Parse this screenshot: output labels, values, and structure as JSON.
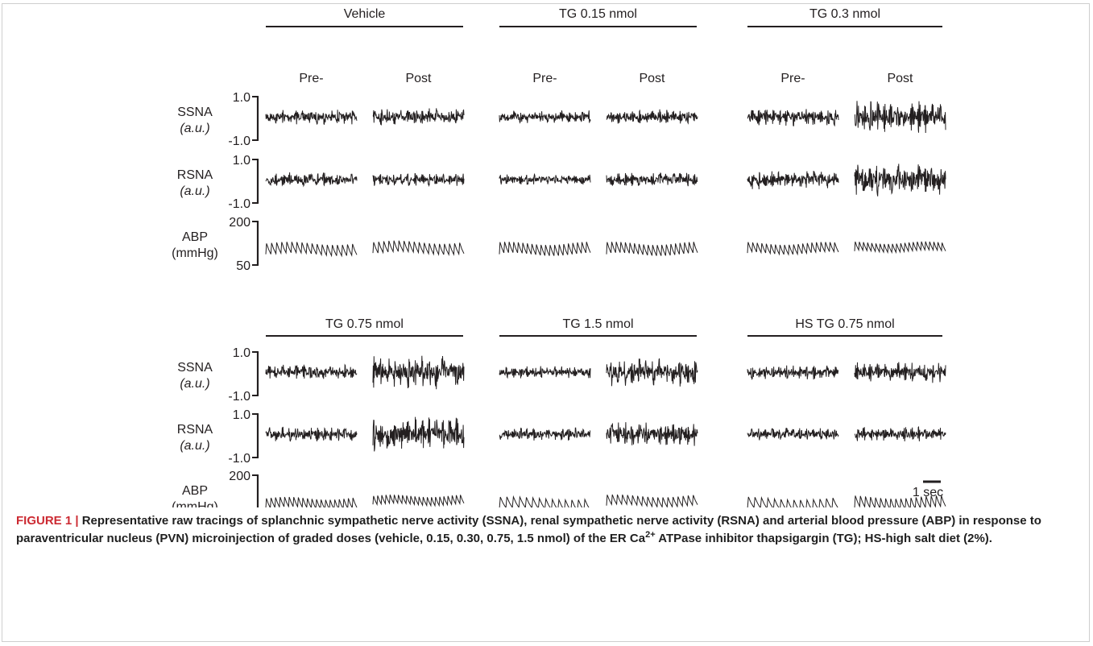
{
  "figure": {
    "scale_bar_label": "1 sec",
    "row_labels": [
      {
        "name": "SSNA",
        "unit": "(a.u.)",
        "top_tick": "1.0",
        "bottom_tick": "-1.0"
      },
      {
        "name": "RSNA",
        "unit": "(a.u.)",
        "top_tick": "1.0",
        "bottom_tick": "-1.0"
      },
      {
        "name": "ABP",
        "unit": "(mmHg)",
        "top_tick": "200",
        "bottom_tick": "50"
      }
    ],
    "panels": [
      {
        "groups": [
          {
            "title": "Vehicle",
            "pre": "Pre-",
            "post": "Post",
            "amp": {
              "ssna": [
                0.35,
                0.4
              ],
              "rsna": [
                0.35,
                0.3
              ],
              "abp_base": [
                0.45,
                0.5
              ],
              "abp_amp": [
                0.45,
                0.45
              ],
              "abp_beats": [
                18,
                18
              ]
            }
          },
          {
            "title": "TG 0.15 nmol",
            "pre": "Pre-",
            "post": "Post",
            "amp": {
              "ssna": [
                0.3,
                0.35
              ],
              "rsna": [
                0.25,
                0.35
              ],
              "abp_base": [
                0.45,
                0.45
              ],
              "abp_amp": [
                0.45,
                0.45
              ],
              "abp_beats": [
                20,
                20
              ]
            }
          },
          {
            "title": "TG 0.3 nmol",
            "pre": "Pre-",
            "post": "Post",
            "amp": {
              "ssna": [
                0.45,
                0.75
              ],
              "rsna": [
                0.45,
                0.8
              ],
              "abp_base": [
                0.5,
                0.58
              ],
              "abp_amp": [
                0.4,
                0.35
              ],
              "abp_beats": [
                20,
                22
              ]
            }
          }
        ]
      },
      {
        "groups": [
          {
            "title": "TG 0.75 nmol",
            "pre": "Pre-",
            "post": "Post",
            "amp": {
              "ssna": [
                0.35,
                0.8
              ],
              "rsna": [
                0.35,
                0.8
              ],
              "abp_base": [
                0.45,
                0.6
              ],
              "abp_amp": [
                0.4,
                0.35
              ],
              "abp_beats": [
                20,
                22
              ]
            }
          },
          {
            "title": "TG 1.5 nmol",
            "pre": "Pre-",
            "post": "Post",
            "amp": {
              "ssna": [
                0.3,
                0.7
              ],
              "rsna": [
                0.3,
                0.6
              ],
              "abp_base": [
                0.4,
                0.55
              ],
              "abp_amp": [
                0.45,
                0.4
              ],
              "abp_beats": [
                14,
                18
              ]
            }
          },
          {
            "title": "HS TG 0.75 nmol",
            "pre": "Pre-",
            "post": "Post",
            "amp": {
              "ssna": [
                0.35,
                0.5
              ],
              "rsna": [
                0.3,
                0.35
              ],
              "abp_base": [
                0.4,
                0.45
              ],
              "abp_amp": [
                0.45,
                0.45
              ],
              "abp_beats": [
                14,
                18
              ]
            }
          }
        ]
      }
    ]
  },
  "caption": {
    "figure_number": "FIGURE 1 |",
    "text_before_sup": " Representative raw tracings of splanchnic sympathetic nerve activity (SSNA), renal sympathetic nerve activity (RSNA) and arterial blood pressure (ABP) in response to paraventricular nucleus (PVN) microinjection of graded doses (vehicle, 0.15, 0.30, 0.75, 1.5 nmol) of the ER Ca",
    "superscript": "2+",
    "text_after_sup": " ATPase inhibitor thapsigargin (TG); HS-high salt diet (2%)."
  }
}
